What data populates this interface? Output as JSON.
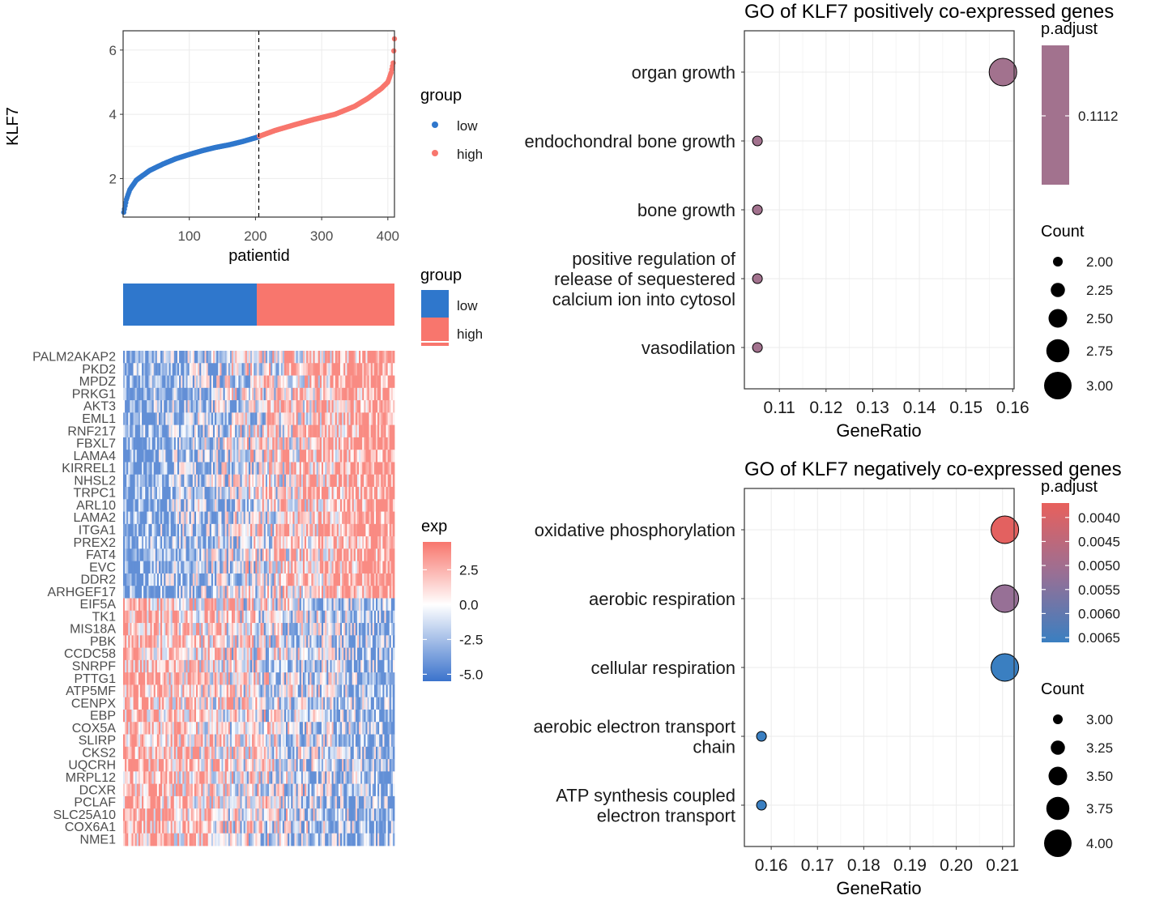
{
  "chart_data": [
    {
      "type": "scatter",
      "name": "klf7-expression-ranked",
      "xlabel": "patientid",
      "ylabel": "KLF7",
      "xticks": [
        100,
        200,
        300,
        400
      ],
      "yticks": [
        2,
        4,
        6
      ],
      "xlim": [
        0,
        410
      ],
      "ylim": [
        0.8,
        6.6
      ],
      "cutoff_x": 205,
      "legend": {
        "title": "group",
        "items": [
          {
            "label": "low",
            "color": "#2f77cc"
          },
          {
            "label": "high",
            "color": "#f8766d"
          }
        ]
      },
      "series": [
        {
          "name": "low",
          "color": "#2f77cc",
          "x": [
            1,
            5,
            10,
            20,
            40,
            60,
            80,
            100,
            120,
            140,
            160,
            180,
            205
          ],
          "y": [
            0.95,
            1.35,
            1.65,
            1.95,
            2.25,
            2.45,
            2.62,
            2.75,
            2.87,
            2.97,
            3.05,
            3.15,
            3.3
          ]
        },
        {
          "name": "high",
          "color": "#f8766d",
          "x": [
            206,
            230,
            260,
            290,
            320,
            350,
            370,
            390,
            400,
            405,
            408,
            410
          ],
          "y": [
            3.32,
            3.5,
            3.68,
            3.85,
            4.0,
            4.25,
            4.5,
            4.8,
            5.0,
            5.3,
            5.6,
            6.35
          ]
        }
      ]
    },
    {
      "type": "heatmap",
      "name": "coexpression-heatmap",
      "annotation_legend": {
        "title": "group",
        "items": [
          {
            "label": "low",
            "color": "#2f77cc"
          },
          {
            "label": "high",
            "color": "#f8766d"
          }
        ]
      },
      "annotation_split_fraction": 0.49,
      "rows_positive": [
        "PALM2AKAP2",
        "PKD2",
        "MPDZ",
        "PRKG1",
        "AKT3",
        "EML1",
        "RNF217",
        "FBXL7",
        "LAMA4",
        "KIRREL1",
        "NHSL2",
        "TRPC1",
        "ARL10",
        "LAMA2",
        "ITGA1",
        "PREX2",
        "FAT4",
        "EVC",
        "DDR2",
        "ARHGEF17"
      ],
      "rows_negative": [
        "EIF5A",
        "TK1",
        "MIS18A",
        "PBK",
        "CCDC58",
        "SNRPF",
        "PTTG1",
        "ATP5MF",
        "CENPX",
        "EBP",
        "COX5A",
        "SLIRP",
        "CKS2",
        "UQCRH",
        "MRPL12",
        "DCXR",
        "PCLAF",
        "SLC25A10",
        "COX6A1",
        "NME1"
      ],
      "color_legend": {
        "title": "exp",
        "ticks": [
          "2.5",
          "0.0",
          "-2.5",
          "-5.0"
        ],
        "min": -5.5,
        "max": 4.5,
        "low_color": "#3b73cc",
        "mid_color": "#ffffff",
        "high_color": "#f8766d"
      }
    },
    {
      "type": "scatter",
      "name": "go-positive",
      "title": "GO of KLF7 positively co-expressed genes",
      "xlabel": "GeneRatio",
      "xticks": [
        "0.11",
        "0.12",
        "0.13",
        "0.14",
        "0.15",
        "0.16"
      ],
      "xlim": [
        0.1025,
        0.1603
      ],
      "categories": [
        "organ growth",
        "endochondral bone growth",
        "bone growth",
        "positive regulation of release of sequestered calcium ion into cytosol",
        "vasodilation"
      ],
      "category_lines": [
        [
          "organ growth"
        ],
        [
          "endochondral bone growth"
        ],
        [
          "bone growth"
        ],
        [
          "positive regulation of",
          "release of sequestered",
          "calcium ion into cytosol"
        ],
        [
          "vasodilation"
        ]
      ],
      "gene_ratio": [
        0.1579,
        0.1053,
        0.1053,
        0.1053,
        0.1053
      ],
      "count": [
        3,
        2,
        2,
        2,
        2
      ],
      "p_adjust": [
        0.1112,
        0.1112,
        0.1112,
        0.1112,
        0.1112
      ],
      "color_legend": {
        "title": "p.adjust",
        "ticks": [
          "0.1112"
        ],
        "color": "#a2728e"
      },
      "size_legend": {
        "title": "Count",
        "items": [
          "2.00",
          "2.25",
          "2.50",
          "2.75",
          "3.00"
        ]
      }
    },
    {
      "type": "scatter",
      "name": "go-negative",
      "title": "GO of KLF7 negatively co-expressed genes",
      "xlabel": "GeneRatio",
      "xticks": [
        "0.16",
        "0.17",
        "0.18",
        "0.19",
        "0.20",
        "0.21"
      ],
      "xlim": [
        0.1542,
        0.2125
      ],
      "categories": [
        "oxidative phosphorylation",
        "aerobic respiration",
        "cellular respiration",
        "aerobic electron transport chain",
        "ATP synthesis coupled electron transport"
      ],
      "category_lines": [
        [
          "oxidative phosphorylation"
        ],
        [
          "aerobic respiration"
        ],
        [
          "cellular respiration"
        ],
        [
          "aerobic electron transport",
          "chain"
        ],
        [
          "ATP synthesis coupled",
          "electron transport"
        ]
      ],
      "gene_ratio": [
        0.2105,
        0.2105,
        0.2105,
        0.1579,
        0.1579
      ],
      "count": [
        4,
        4,
        4,
        3,
        3
      ],
      "p_adjust": [
        0.0038,
        0.0052,
        0.0066,
        0.0066,
        0.0066
      ],
      "color_legend": {
        "title": "p.adjust",
        "ticks": [
          "0.0040",
          "0.0045",
          "0.0050",
          "0.0055",
          "0.0060",
          "0.0065"
        ],
        "min": 0.0037,
        "max": 0.0066,
        "low_color": "#e8605c",
        "high_color": "#3a7fc1"
      },
      "size_legend": {
        "title": "Count",
        "items": [
          "3.00",
          "3.25",
          "3.50",
          "3.75",
          "4.00"
        ]
      }
    }
  ]
}
